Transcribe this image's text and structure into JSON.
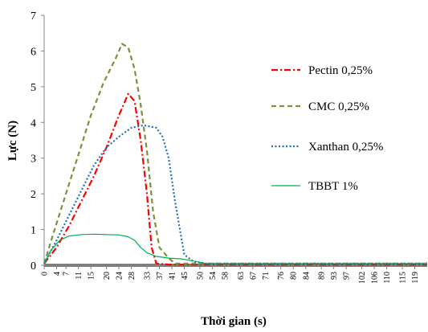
{
  "chart_data": {
    "type": "line",
    "xlabel": "Thời gian (s)",
    "ylabel": "Lực (N)",
    "xlim": [
      0,
      123
    ],
    "ylim": [
      0,
      7
    ],
    "yticks": [
      0,
      1,
      2,
      3,
      4,
      5,
      6,
      7
    ],
    "xticks": [
      0,
      4,
      7,
      11,
      15,
      20,
      24,
      28,
      33,
      37,
      41,
      45,
      50,
      54,
      58,
      63,
      67,
      71,
      76,
      80,
      84,
      89,
      93,
      97,
      102,
      106,
      110,
      115,
      119
    ],
    "legend_position": "right",
    "series": [
      {
        "name": "Pectin 0,25%",
        "color": "#ff0000",
        "style": "dashdot",
        "points": [
          [
            0,
            0.05
          ],
          [
            4,
            0.5
          ],
          [
            8,
            1.1
          ],
          [
            12,
            1.8
          ],
          [
            16,
            2.5
          ],
          [
            20,
            3.3
          ],
          [
            24,
            4.2
          ],
          [
            27,
            4.8
          ],
          [
            29,
            4.6
          ],
          [
            31,
            3.5
          ],
          [
            33,
            2.0
          ],
          [
            34.5,
            0.5
          ],
          [
            36,
            0.05
          ],
          [
            40,
            0.02
          ],
          [
            123,
            0.02
          ]
        ]
      },
      {
        "name": "CMC 0,25%",
        "color": "#77933c",
        "style": "dashed",
        "points": [
          [
            0,
            0.05
          ],
          [
            3,
            0.9
          ],
          [
            7,
            2.0
          ],
          [
            11,
            3.1
          ],
          [
            15,
            4.2
          ],
          [
            19,
            5.1
          ],
          [
            23,
            5.8
          ],
          [
            25,
            6.2
          ],
          [
            27,
            6.1
          ],
          [
            29,
            5.5
          ],
          [
            31,
            4.5
          ],
          [
            33,
            3.2
          ],
          [
            35,
            1.5
          ],
          [
            37,
            0.5
          ],
          [
            40,
            0.2
          ],
          [
            42,
            0.05
          ],
          [
            123,
            0.05
          ]
        ]
      },
      {
        "name": "Xanthan 0,25%",
        "color": "#1f6ebf",
        "style": "dotted",
        "points": [
          [
            0,
            0.05
          ],
          [
            4,
            0.7
          ],
          [
            8,
            1.4
          ],
          [
            12,
            2.1
          ],
          [
            16,
            2.8
          ],
          [
            20,
            3.3
          ],
          [
            24,
            3.6
          ],
          [
            28,
            3.85
          ],
          [
            32,
            3.92
          ],
          [
            36,
            3.85
          ],
          [
            38,
            3.6
          ],
          [
            40,
            3.0
          ],
          [
            42,
            1.8
          ],
          [
            44,
            0.8
          ],
          [
            45,
            0.3
          ],
          [
            48,
            0.1
          ],
          [
            52,
            0.05
          ],
          [
            123,
            0.05
          ]
        ]
      },
      {
        "name": "TBBT 1%",
        "color": "#00b050",
        "style": "solid",
        "points": [
          [
            0,
            0.05
          ],
          [
            2,
            0.4
          ],
          [
            5,
            0.7
          ],
          [
            8,
            0.82
          ],
          [
            12,
            0.86
          ],
          [
            16,
            0.87
          ],
          [
            20,
            0.86
          ],
          [
            24,
            0.85
          ],
          [
            27,
            0.8
          ],
          [
            29,
            0.7
          ],
          [
            31,
            0.5
          ],
          [
            33,
            0.35
          ],
          [
            36,
            0.25
          ],
          [
            40,
            0.2
          ],
          [
            44,
            0.18
          ],
          [
            48,
            0.12
          ],
          [
            52,
            0.05
          ],
          [
            123,
            0.05
          ]
        ]
      }
    ]
  }
}
